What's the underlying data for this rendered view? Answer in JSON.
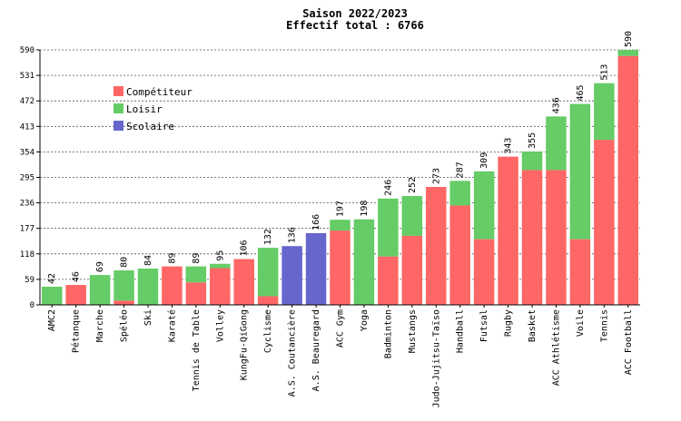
{
  "chart_data": {
    "type": "bar",
    "stacked": true,
    "title": "Saison 2022/2023",
    "subtitle": "Effectif total : 6766",
    "ylim": [
      0,
      590
    ],
    "yticks": [
      0,
      59,
      118,
      177,
      236,
      295,
      354,
      413,
      472,
      531,
      590
    ],
    "grid": true,
    "legend_position": "top-left",
    "categories": [
      "AMC2",
      "Pétanque",
      "Marche",
      "Spéléo",
      "Ski",
      "Karaté",
      "Tennis de Table",
      "Volley",
      "KungFu-QiGong",
      "Cyclisme",
      "A.S. Coutancière",
      "A.S. Beauregard",
      "ACC Gym",
      "Yoga",
      "Badminton",
      "Mustangs",
      "Judo-Jujitsu-Taïso",
      "Handball",
      "Futsal",
      "Rugby",
      "Basket",
      "ACC Athlétisme",
      "Voile",
      "Tennis",
      "ACC Football"
    ],
    "totals": [
      42,
      46,
      69,
      80,
      84,
      89,
      89,
      95,
      106,
      132,
      136,
      166,
      197,
      198,
      246,
      252,
      273,
      287,
      309,
      343,
      355,
      436,
      465,
      513,
      590
    ],
    "series": [
      {
        "name": "Compétiteur",
        "color": "#ff6666",
        "values": [
          0,
          46,
          0,
          10,
          0,
          89,
          52,
          85,
          106,
          20,
          0,
          0,
          172,
          0,
          112,
          160,
          273,
          230,
          152,
          343,
          312,
          312,
          152,
          382,
          576
        ]
      },
      {
        "name": "Loisir",
        "color": "#66cc66",
        "values": [
          42,
          0,
          69,
          70,
          84,
          0,
          37,
          10,
          0,
          112,
          0,
          0,
          25,
          198,
          134,
          92,
          0,
          57,
          157,
          0,
          43,
          124,
          313,
          131,
          14
        ]
      },
      {
        "name": "Scolaire",
        "color": "#6666cc",
        "values": [
          0,
          0,
          0,
          0,
          0,
          0,
          0,
          0,
          0,
          0,
          136,
          166,
          0,
          0,
          0,
          0,
          0,
          0,
          0,
          0,
          0,
          0,
          0,
          0,
          0
        ]
      }
    ]
  }
}
